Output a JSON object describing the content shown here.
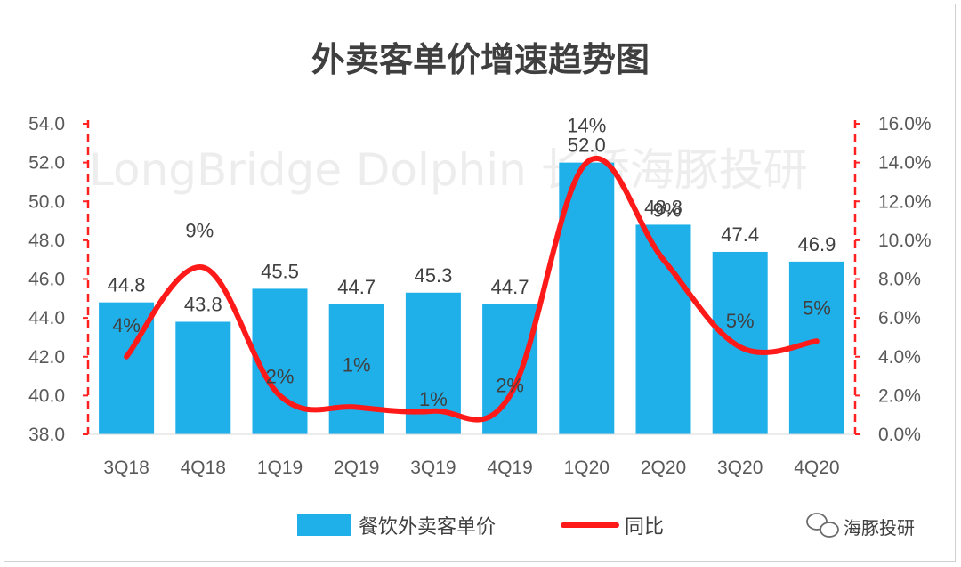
{
  "chart_data": {
    "type": "bar+line",
    "title": "外卖客单价增速趋势图",
    "categories": [
      "3Q18",
      "4Q18",
      "1Q19",
      "2Q19",
      "3Q19",
      "4Q19",
      "1Q20",
      "2Q20",
      "3Q20",
      "4Q20"
    ],
    "series": [
      {
        "name": "餐饮外卖客单价",
        "type": "bar",
        "axis": "left",
        "values": [
          44.8,
          43.8,
          45.5,
          44.7,
          45.3,
          44.7,
          52.0,
          48.8,
          47.4,
          46.9
        ],
        "labels": [
          "44.8",
          "43.8",
          "45.5",
          "44.7",
          "45.3",
          "44.7",
          "52.0",
          "48.8",
          "47.4",
          "46.9"
        ],
        "color": "#1fb0ea"
      },
      {
        "name": "同比",
        "type": "line",
        "axis": "right",
        "values": [
          0.04,
          0.086,
          0.02,
          0.014,
          0.012,
          0.02,
          0.14,
          0.09,
          0.045,
          0.048
        ],
        "labels": [
          "4%",
          "9%",
          "2%",
          "1%",
          "1%",
          "2%",
          "14%",
          "9%",
          "5%",
          "5%"
        ],
        "color": "#ff1a1a"
      }
    ],
    "y_left": {
      "min": 38.0,
      "max": 54.0,
      "step": 2.0,
      "ticks": [
        "38.0",
        "40.0",
        "42.0",
        "44.0",
        "46.0",
        "48.0",
        "50.0",
        "52.0",
        "54.0"
      ]
    },
    "y_right": {
      "min": 0.0,
      "max": 0.16,
      "step": 0.02,
      "ticks": [
        "0.0%",
        "2.0%",
        "4.0%",
        "6.0%",
        "8.0%",
        "10.0%",
        "12.0%",
        "14.0%",
        "16.0%"
      ]
    },
    "legend": {
      "position": "bottom"
    }
  },
  "watermark": "LongBridge Dolphin 长桥海豚投研",
  "badge": {
    "text": "海豚投研"
  },
  "colors": {
    "bar": "#1fb0ea",
    "line": "#ff1a1a",
    "axis_red": "#ff2020",
    "text": "#595959"
  }
}
